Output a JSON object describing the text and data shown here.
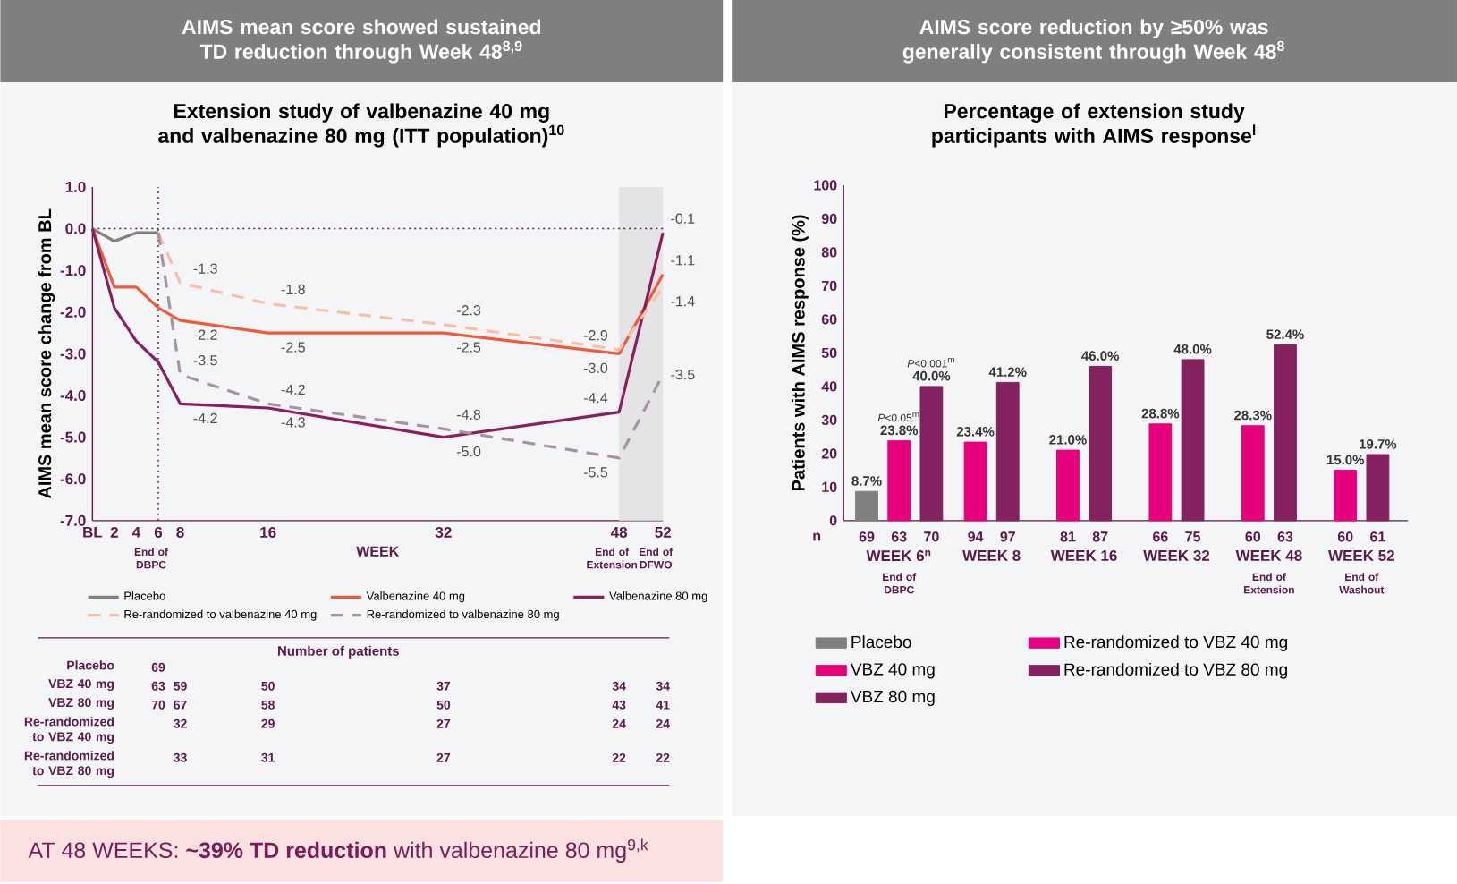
{
  "chart_data": [
    {
      "type": "line",
      "title": "AIMS mean score showed sustained TD reduction through Week 48$^{8,9}$",
      "subtitle": "Extension study of valbenazine 40 mg and valbenazine 80 mg (ITT population)$^{10}$",
      "xlabel": "WEEK",
      "ylabel": "AIMS mean score change from BL",
      "xlim": [
        0,
        52
      ],
      "ylim": [
        -7,
        1
      ],
      "xticks": [
        {
          "value": 0,
          "label": "BL"
        },
        2,
        4,
        6,
        8,
        16,
        32,
        48,
        52
      ],
      "yticks": [
        {
          "value": 1,
          "label": "1.0"
        },
        {
          "value": 0,
          "label": "0.0"
        },
        {
          "value": -1,
          "label": "-1.0"
        },
        {
          "value": -2,
          "label": "-2.0"
        },
        {
          "value": -3,
          "label": "-3.0"
        },
        {
          "value": -4,
          "label": "-4.0"
        },
        {
          "value": -5,
          "label": "-5.0"
        },
        {
          "value": -6,
          "label": "-6.0"
        },
        {
          "value": -7,
          "label": "-7.0"
        }
      ],
      "legend": "bottom",
      "marker": "none",
      "line_style": "solid",
      "ref_lines": [
        {
          "axis": "y",
          "value": 0,
          "line_style": "dotted",
          "color": "#5b1a4a"
        },
        {
          "axis": "x",
          "value": 6,
          "line_style": "dotted",
          "color": "#5b1a4a"
        }
      ],
      "bands": [
        {
          "axis": "x",
          "from": 48,
          "to": 52,
          "color": "#e4e4e6"
        }
      ],
      "annotations": [
        "End of DBPC",
        "End of Extension",
        "End of DFWO",
        "AT 48 WEEKS: **~39% TD reduction** with valbenazine 80 mg$^{9,k}$"
      ],
      "series": [
        {
          "name": "Placebo",
          "color": "#808080",
          "x": [
            0,
            2,
            4,
            6
          ],
          "values": [
            0,
            -0.3,
            -0.1,
            -0.1
          ]
        },
        {
          "name": "Valbenazine 40 mg",
          "color": "#f05a3c",
          "x": [
            0,
            2,
            4,
            6,
            8,
            16,
            32,
            48,
            52
          ],
          "values": [
            0,
            -1.4,
            -1.4,
            -1.9,
            -2.2,
            -2.5,
            -2.5,
            -3.0,
            -1.1
          ],
          "value_labels": [
            null,
            null,
            null,
            null,
            "-2.2",
            "-2.5",
            "-2.5",
            "-3.0",
            "-1.1"
          ]
        },
        {
          "name": "Valbenazine 80 mg",
          "color": "#8b1e5e",
          "x": [
            0,
            2,
            4,
            6,
            8,
            16,
            32,
            48,
            52
          ],
          "values": [
            0,
            -1.9,
            -2.7,
            -3.2,
            -4.2,
            -4.3,
            -5.0,
            -4.4,
            -0.1
          ],
          "value_labels": [
            null,
            null,
            null,
            null,
            "-4.2",
            "-4.3",
            "-5.0",
            "-4.4",
            "-0.1"
          ]
        },
        {
          "name": "Re-randomized to valbenazine 40 mg",
          "color": "#f7bfa6",
          "line_style": "dashed",
          "x": [
            6,
            8,
            16,
            32,
            48,
            52
          ],
          "values": [
            -0.1,
            -1.3,
            -1.8,
            -2.3,
            -2.9,
            -1.4
          ],
          "value_labels": [
            null,
            "-1.3",
            "-1.8",
            "-2.3",
            "-2.9",
            "-1.4"
          ]
        },
        {
          "name": "Re-randomized to valbenazine 80 mg",
          "color": "#a8949f",
          "line_style": "dashed",
          "x": [
            6,
            8,
            16,
            32,
            48,
            52
          ],
          "values": [
            -0.1,
            -3.5,
            -4.2,
            -4.8,
            -5.5,
            -3.5
          ],
          "value_labels": [
            null,
            "-3.5",
            "-4.2",
            "-4.8",
            "-5.5",
            "-3.5"
          ]
        }
      ]
    },
    {
      "type": "other",
      "title": "Number of patients",
      "y_categories": [
        "Placebo",
        "VBZ 40 mg",
        "VBZ 80 mg",
        "Re-randomized to VBZ 40 mg",
        "Re-randomized to VBZ 80 mg"
      ],
      "cell_labels": [
        [
          "69",
          null,
          null,
          null,
          null,
          null
        ],
        [
          "63",
          "59",
          "50",
          "37",
          "34",
          "34"
        ],
        [
          "70",
          "67",
          "58",
          "50",
          "43",
          "41"
        ],
        [
          null,
          "32",
          "29",
          "27",
          "24",
          "24"
        ],
        [
          null,
          "33",
          "31",
          "27",
          "22",
          "22"
        ]
      ]
    },
    {
      "type": "bar",
      "title": "AIMS score reduction by ≥50% was generally consistent through Week 48$^{8}$",
      "subtitle": "Percentage of extension study participants with AIMS response$^{l}$",
      "ylabel": "Patients with AIMS response (%)",
      "categories": [
        "WEEK 6$^{n}$",
        "WEEK 8",
        "WEEK 16",
        "WEEK 32",
        "WEEK 48",
        "WEEK 52"
      ],
      "ylim": [
        0,
        100
      ],
      "yticks": [
        0,
        10,
        20,
        30,
        40,
        50,
        60,
        70,
        80,
        90,
        100
      ],
      "legend": "bottom",
      "annotations": [
        "n",
        "*P*<0.05$^{m}$",
        "*P*<0.001$^{m}$",
        "69",
        "63",
        "70",
        "94",
        "97",
        "81",
        "87",
        "66",
        "75",
        "60",
        "63",
        "60",
        "61",
        "End of DBPC",
        "End of Extension",
        "End of Washout"
      ],
      "series": [
        {
          "name": "Placebo",
          "color": "#808080",
          "values": [
            8.7,
            null,
            null,
            null,
            null,
            null
          ],
          "value_labels": [
            "8.7%",
            null,
            null,
            null,
            null,
            null
          ]
        },
        {
          "name": "VBZ 40 mg",
          "color": "#e6007e",
          "values": [
            23.8,
            null,
            null,
            null,
            null,
            null
          ],
          "value_labels": [
            "23.8%",
            null,
            null,
            null,
            null,
            null
          ]
        },
        {
          "name": "VBZ 80 mg",
          "color": "#84215f",
          "values": [
            40.0,
            null,
            null,
            null,
            null,
            null
          ],
          "value_labels": [
            "40.0%",
            null,
            null,
            null,
            null,
            null
          ]
        },
        {
          "name": "Re-randomized to VBZ 40 mg",
          "color": "#e6007e",
          "values": [
            null,
            23.4,
            21.0,
            28.8,
            28.3,
            15.0
          ],
          "value_labels": [
            null,
            "23.4%",
            "21.0%",
            "28.8%",
            "28.3%",
            "15.0%"
          ]
        },
        {
          "name": "Re-randomized to VBZ 80 mg",
          "color": "#84215f",
          "values": [
            null,
            41.2,
            46.0,
            48.0,
            52.4,
            19.7
          ],
          "value_labels": [
            null,
            "41.2%",
            "46.0%",
            "48.0%",
            "52.4%",
            "19.7%"
          ]
        }
      ]
    }
  ]
}
